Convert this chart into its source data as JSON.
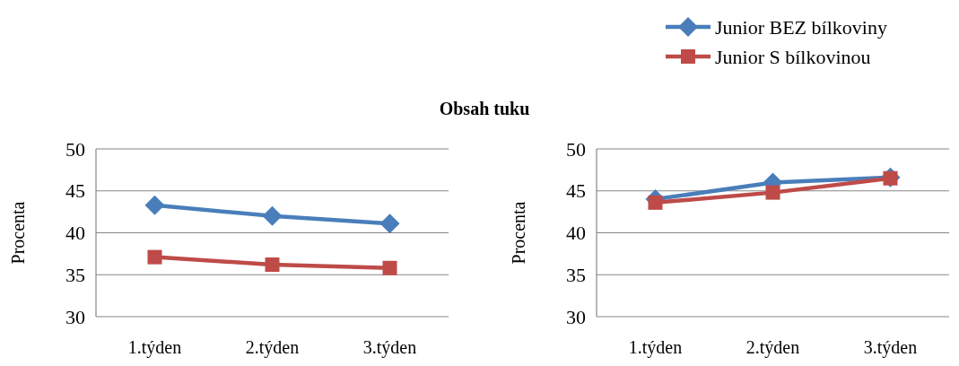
{
  "chart_data": [
    {
      "type": "line",
      "title": "Obsah tuku",
      "ylabel": "Procenta",
      "categories": [
        "1.týden",
        "2.týden",
        "3.týden"
      ],
      "ylim": [
        30,
        50
      ],
      "yticks": [
        30,
        35,
        40,
        45,
        50
      ],
      "grid": "y",
      "legend": false,
      "line_style": "solid",
      "series": [
        {
          "color": "#4a7ebb",
          "marker": "diamond",
          "values": [
            43.3,
            42.0,
            41.1
          ]
        },
        {
          "color": "#be4b48",
          "marker": "square",
          "values": [
            37.1,
            36.2,
            35.8
          ]
        }
      ]
    },
    {
      "type": "line",
      "ylabel": "Procenta",
      "categories": [
        "1.týden",
        "2.týden",
        "3.týden"
      ],
      "ylim": [
        30,
        50
      ],
      "yticks": [
        30,
        35,
        40,
        45,
        50
      ],
      "grid": "y",
      "legend": "top right",
      "line_style": "solid",
      "series": [
        {
          "name": "Junior BEZ bílkoviny",
          "color": "#4a7ebb",
          "marker": "diamond",
          "values": [
            44.0,
            46.0,
            46.6
          ]
        },
        {
          "name": "Junior S bílkovinou",
          "color": "#be4b48",
          "marker": "square",
          "values": [
            43.6,
            44.8,
            46.5
          ]
        }
      ]
    }
  ]
}
